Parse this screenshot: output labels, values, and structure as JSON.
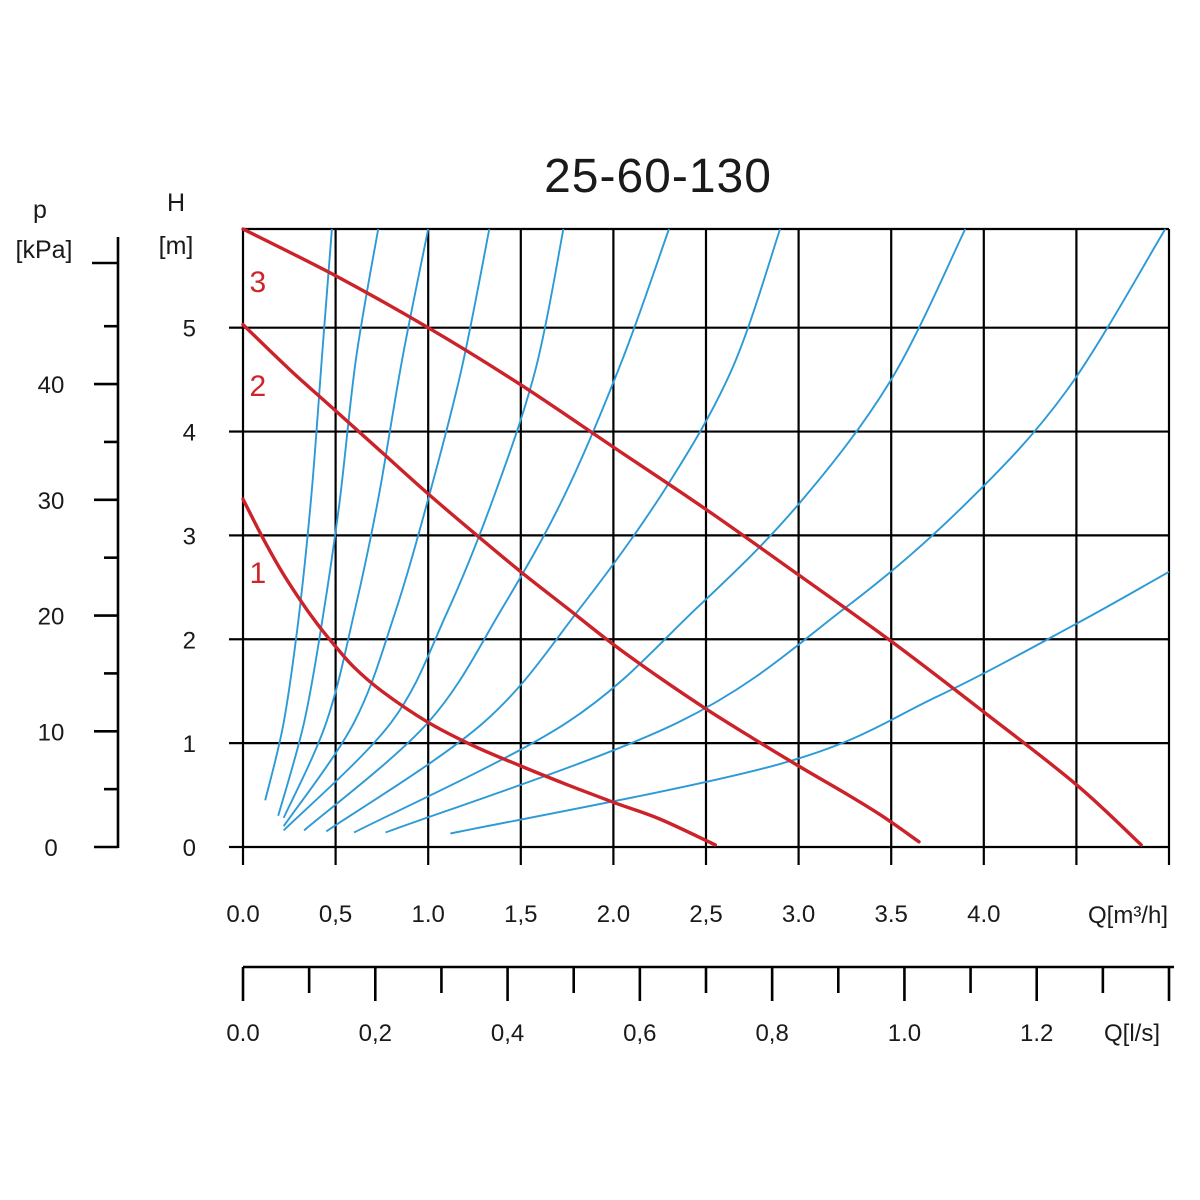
{
  "chart_data": {
    "type": "line",
    "title": "25-60-130",
    "left_axis": {
      "label_symbol": "p",
      "label_unit": "[kPa]",
      "ticks": [
        "0",
        "10",
        "20",
        "30",
        "40"
      ],
      "ylim": [
        0,
        53.4
      ]
    },
    "y_axis": {
      "label_symbol": "H",
      "label_unit": "[m]",
      "ticks": [
        "0",
        "1",
        "2",
        "3",
        "4",
        "5"
      ],
      "ylim": [
        0,
        5.95
      ]
    },
    "x_axis": {
      "label": "Q[m³/h]",
      "ticks": [
        "0.0",
        "0,5",
        "1.0",
        "1,5",
        "2.0",
        "2,5",
        "3.0",
        "3.5",
        "4.0"
      ],
      "xlim": [
        0,
        5.0
      ]
    },
    "x2_axis": {
      "label": "Q[l/s]",
      "ticks": [
        "0.0",
        "0,2",
        "0,4",
        "0,6",
        "0,8",
        "1.0",
        "1.2"
      ],
      "xlim": [
        0,
        1.4
      ]
    },
    "series": [
      {
        "name": "1",
        "points": [
          [
            0,
            3.35
          ],
          [
            0.1,
            3.0
          ],
          [
            0.2,
            2.68
          ],
          [
            0.3,
            2.4
          ],
          [
            0.4,
            2.15
          ],
          [
            0.5,
            1.93
          ],
          [
            0.6,
            1.73
          ],
          [
            0.75,
            1.5
          ],
          [
            1.0,
            1.2
          ],
          [
            1.25,
            0.97
          ],
          [
            1.5,
            0.78
          ],
          [
            1.75,
            0.6
          ],
          [
            2.0,
            0.43
          ],
          [
            2.25,
            0.27
          ],
          [
            2.55,
            0.02
          ]
        ]
      },
      {
        "name": "2",
        "points": [
          [
            0,
            5.03
          ],
          [
            0.25,
            4.6
          ],
          [
            0.5,
            4.2
          ],
          [
            0.75,
            3.8
          ],
          [
            1.0,
            3.4
          ],
          [
            1.25,
            3.02
          ],
          [
            1.5,
            2.65
          ],
          [
            1.75,
            2.3
          ],
          [
            2.0,
            1.95
          ],
          [
            2.25,
            1.63
          ],
          [
            2.5,
            1.33
          ],
          [
            2.75,
            1.05
          ],
          [
            3.0,
            0.78
          ],
          [
            3.25,
            0.52
          ],
          [
            3.45,
            0.3
          ],
          [
            3.65,
            0.05
          ]
        ]
      },
      {
        "name": "3",
        "points": [
          [
            0,
            5.95
          ],
          [
            0.5,
            5.5
          ],
          [
            1.0,
            5.0
          ],
          [
            1.5,
            4.45
          ],
          [
            2.0,
            3.85
          ],
          [
            2.5,
            3.25
          ],
          [
            3.0,
            2.62
          ],
          [
            3.5,
            1.98
          ],
          [
            4.0,
            1.3
          ],
          [
            4.5,
            0.6
          ],
          [
            4.85,
            0.02
          ]
        ]
      }
    ],
    "system_curves": [
      {
        "points": [
          [
            0.12,
            0.45
          ],
          [
            0.22,
            1.2
          ],
          [
            0.3,
            2.2
          ],
          [
            0.37,
            3.4
          ],
          [
            0.43,
            4.8
          ],
          [
            0.48,
            5.95
          ]
        ]
      },
      {
        "points": [
          [
            0.19,
            0.3
          ],
          [
            0.33,
            1.2
          ],
          [
            0.43,
            2.2
          ],
          [
            0.52,
            3.3
          ],
          [
            0.61,
            4.7
          ],
          [
            0.73,
            5.95
          ]
        ]
      },
      {
        "points": [
          [
            0.22,
            0.28
          ],
          [
            0.45,
            1.2
          ],
          [
            0.6,
            2.25
          ],
          [
            0.73,
            3.35
          ],
          [
            0.86,
            4.7
          ],
          [
            1.0,
            5.95
          ]
        ]
      },
      {
        "points": [
          [
            0.22,
            0.2
          ],
          [
            0.6,
            1.2
          ],
          [
            0.82,
            2.25
          ],
          [
            1.0,
            3.35
          ],
          [
            1.18,
            4.6
          ],
          [
            1.33,
            5.95
          ]
        ]
      },
      {
        "points": [
          [
            0.22,
            0.16
          ],
          [
            0.8,
            1.2
          ],
          [
            1.1,
            2.25
          ],
          [
            1.35,
            3.35
          ],
          [
            1.58,
            4.6
          ],
          [
            1.73,
            5.95
          ]
        ]
      },
      {
        "points": [
          [
            0.33,
            0.16
          ],
          [
            1.0,
            1.2
          ],
          [
            1.4,
            2.3
          ],
          [
            1.74,
            3.4
          ],
          [
            2.05,
            4.7
          ],
          [
            2.3,
            5.95
          ]
        ]
      },
      {
        "points": [
          [
            0.45,
            0.15
          ],
          [
            1.3,
            1.2
          ],
          [
            1.82,
            2.3
          ],
          [
            2.28,
            3.45
          ],
          [
            2.64,
            4.6
          ],
          [
            2.9,
            5.95
          ]
        ]
      },
      {
        "points": [
          [
            0.6,
            0.14
          ],
          [
            1.75,
            1.2
          ],
          [
            2.45,
            2.3
          ],
          [
            3.0,
            3.3
          ],
          [
            3.5,
            4.5
          ],
          [
            3.9,
            5.95
          ]
        ]
      },
      {
        "points": [
          [
            0.77,
            0.14
          ],
          [
            2.35,
            1.2
          ],
          [
            3.25,
            2.3
          ],
          [
            3.9,
            3.3
          ],
          [
            4.45,
            4.4
          ],
          [
            4.98,
            5.95
          ]
        ]
      },
      {
        "points": [
          [
            1.12,
            0.13
          ],
          [
            2.9,
            0.8
          ],
          [
            3.75,
            1.45
          ],
          [
            4.5,
            2.15
          ],
          [
            5.0,
            2.65
          ]
        ]
      }
    ],
    "curve_label_positions": [
      {
        "name": "1",
        "x": 0.08,
        "y": 2.65
      },
      {
        "name": "2",
        "x": 0.08,
        "y": 4.45
      },
      {
        "name": "3",
        "x": 0.08,
        "y": 5.45
      }
    ],
    "colors": {
      "pump_curves": "#cc2229",
      "system_curves": "#2c9ad7",
      "grid": "#000000"
    },
    "grid": true
  }
}
